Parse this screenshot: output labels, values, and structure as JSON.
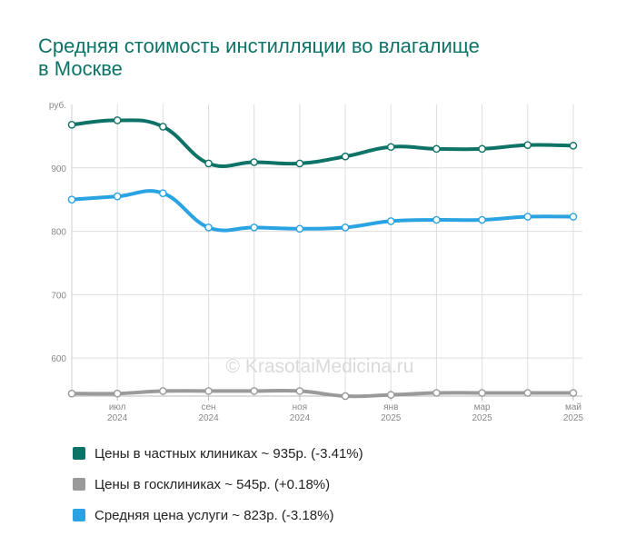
{
  "header": {
    "title_line1": "Средняя стоимость инстилляции во влагалище",
    "title_line2": "в Москве"
  },
  "watermark": "© KrasotaiMedicina.ru",
  "colors": {
    "private": "#0e7367",
    "public": "#9a9a9a",
    "average": "#2aa3e3",
    "grid": "#dddddd",
    "axis_text": "#888888"
  },
  "legend": [
    {
      "label": "Цены в частных клиниках ~ 935р. (-3.41%)",
      "color": "#0e7367"
    },
    {
      "label": "Цены в госклиниках ~ 545р. (+0.18%)",
      "color": "#9a9a9a"
    },
    {
      "label": "Средняя цена услуги ~ 823р. (-3.18%)",
      "color": "#2aa3e3"
    }
  ],
  "chart_data": {
    "type": "line",
    "y_unit_label": "руб.",
    "ylim": [
      540,
      1000
    ],
    "yticks": [
      600,
      700,
      800,
      900
    ],
    "xlim": [
      0,
      11.2
    ],
    "x_ticks": [
      {
        "month": "июл",
        "year": "2024",
        "x": 1
      },
      {
        "month": "сен",
        "year": "2024",
        "x": 3
      },
      {
        "month": "ноя",
        "year": "2024",
        "x": 5
      },
      {
        "month": "янв",
        "year": "2025",
        "x": 7
      },
      {
        "month": "мар",
        "year": "2025",
        "x": 9
      },
      {
        "month": "май",
        "year": "2025",
        "x": 11
      }
    ],
    "x": [
      0,
      1,
      2,
      3,
      4,
      5,
      6,
      7,
      8,
      9,
      10,
      11
    ],
    "series": [
      {
        "name": "Цены в частных клиниках",
        "values": [
          968,
          975,
          965,
          907,
          909,
          907,
          918,
          933,
          930,
          930,
          936,
          935
        ]
      },
      {
        "name": "Средняя цена услуги",
        "values": [
          850,
          855,
          860,
          806,
          806,
          804,
          806,
          816,
          818,
          818,
          823,
          823
        ]
      },
      {
        "name": "Цены в госклиниках",
        "values": [
          544,
          544,
          548,
          548,
          548,
          548,
          540,
          542,
          545,
          545,
          545,
          545
        ]
      }
    ]
  }
}
